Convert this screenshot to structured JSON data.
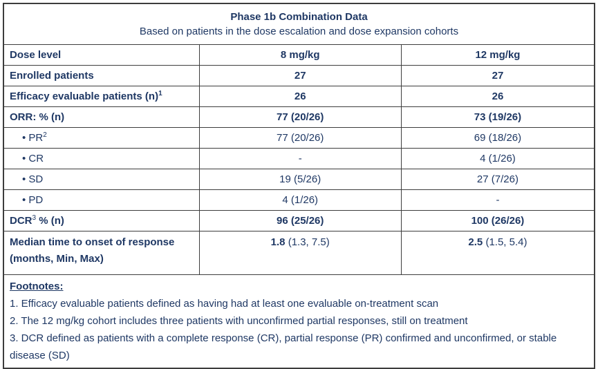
{
  "colors": {
    "text": "#1f3864",
    "border": "#3c3c3c",
    "background": "#ffffff"
  },
  "header": {
    "title": "Phase 1b Combination Data",
    "subtitle": "Based on patients in the dose escalation and dose expansion cohorts"
  },
  "table": {
    "bullet_glyph": "•",
    "columns": [
      "Dose level",
      "8 mg/kg",
      "12 mg/kg"
    ],
    "rows": [
      {
        "label": [
          {
            "t": "Dose level",
            "b": true
          }
        ],
        "values": [
          {
            "b": "8 mg/kg",
            "r": ""
          },
          {
            "b": "12 mg/kg",
            "r": ""
          }
        ]
      },
      {
        "label": [
          {
            "t": "Enrolled patients",
            "b": true
          }
        ],
        "values": [
          {
            "b": "27",
            "r": ""
          },
          {
            "b": "27",
            "r": ""
          }
        ]
      },
      {
        "label": [
          {
            "t": "Efficacy evaluable patients (n)",
            "b": true
          },
          {
            "t": "1",
            "b": true,
            "sup": true
          }
        ],
        "values": [
          {
            "b": "26",
            "r": ""
          },
          {
            "b": "26",
            "r": ""
          }
        ]
      },
      {
        "label": [
          {
            "t": "ORR: % (n)",
            "b": true
          }
        ],
        "values": [
          {
            "b": "77 (20/26)",
            "r": ""
          },
          {
            "b": "73 (19/26)",
            "r": ""
          }
        ]
      },
      {
        "bullet": true,
        "label": [
          {
            "t": "PR",
            "b": false
          },
          {
            "t": "2",
            "b": false,
            "sup": true
          }
        ],
        "values": [
          {
            "b": "",
            "r": "77 (20/26)"
          },
          {
            "b": "",
            "r": "69 (18/26)"
          }
        ]
      },
      {
        "bullet": true,
        "label": [
          {
            "t": "CR",
            "b": false
          }
        ],
        "values": [
          {
            "b": "",
            "r": "-"
          },
          {
            "b": "",
            "r": "4 (1/26)"
          }
        ]
      },
      {
        "bullet": true,
        "label": [
          {
            "t": "SD",
            "b": false
          }
        ],
        "values": [
          {
            "b": "",
            "r": "19 (5/26)"
          },
          {
            "b": "",
            "r": "27 (7/26)"
          }
        ]
      },
      {
        "bullet": true,
        "label": [
          {
            "t": "PD",
            "b": false
          }
        ],
        "values": [
          {
            "b": "",
            "r": "4 (1/26)"
          },
          {
            "b": "",
            "r": "-"
          }
        ]
      },
      {
        "label": [
          {
            "t": "DCR",
            "b": true
          },
          {
            "t": "3",
            "b": false,
            "sup": true
          },
          {
            "t": " % (n)",
            "b": true
          }
        ],
        "values": [
          {
            "b": "96 (25/26)",
            "r": ""
          },
          {
            "b": "100 (26/26)",
            "r": ""
          }
        ]
      },
      {
        "tall": true,
        "label": [
          {
            "t": "Median time to onset of response",
            "b": true
          },
          {
            "br": true
          },
          {
            "t": "(months, Min, Max)",
            "b": true
          }
        ],
        "values": [
          {
            "b": "1.8",
            "r": " (1.3, 7.5)"
          },
          {
            "b": "2.5",
            "r": " (1.5, 5.4)"
          }
        ]
      }
    ]
  },
  "footnotes": {
    "heading": "Footnotes:",
    "items": [
      "1. Efficacy evaluable patients defined as having had at least one evaluable on-treatment scan",
      "2. The 12 mg/kg cohort includes three patients with unconfirmed partial responses, still on treatment",
      "3. DCR defined as patients with a complete response (CR), partial response (PR) confirmed and unconfirmed, or stable disease (SD)"
    ]
  }
}
